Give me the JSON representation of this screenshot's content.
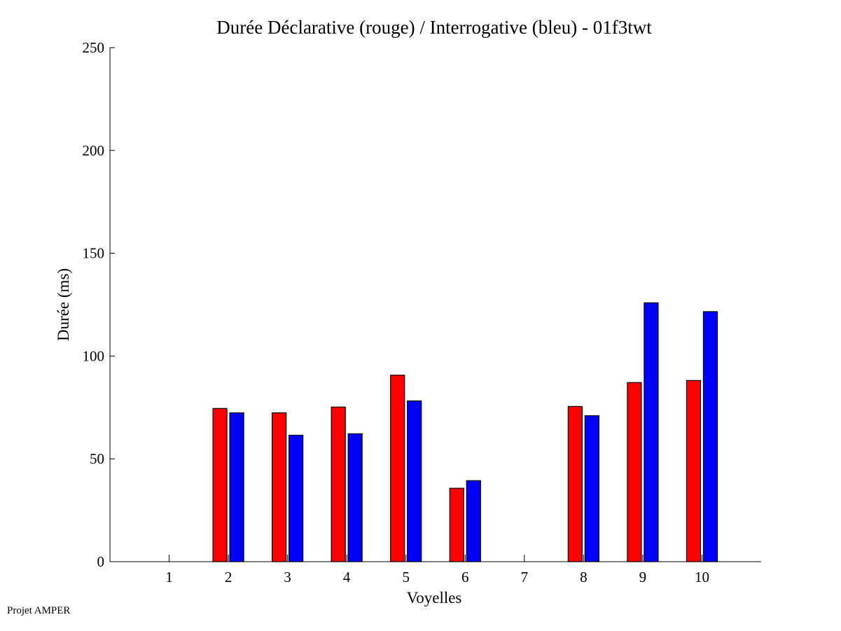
{
  "chart_data": {
    "type": "bar",
    "title": "Durée Déclarative (rouge) / Interrogative (bleu) - 01f3twt",
    "xlabel": "Voyelles",
    "ylabel": "Durée (ms)",
    "categories": [
      "1",
      "2",
      "3",
      "4",
      "5",
      "6",
      "7",
      "8",
      "9",
      "10"
    ],
    "xlim": [
      0,
      11
    ],
    "ylim": [
      0,
      250
    ],
    "yticks": [
      0,
      50,
      100,
      150,
      200,
      250
    ],
    "grid": false,
    "series": [
      {
        "name": "Déclarative (rouge)",
        "color": "#ff0000",
        "values": [
          null,
          74.5,
          72.4,
          75.2,
          90.7,
          35.7,
          null,
          75.5,
          87.1,
          88.1
        ]
      },
      {
        "name": "Interrogative (bleu)",
        "color": "#0000ff",
        "values": [
          null,
          72.4,
          61.5,
          62.2,
          78.2,
          39.4,
          null,
          71.0,
          125.9,
          121.6
        ]
      }
    ]
  },
  "footer": "Projet AMPER"
}
